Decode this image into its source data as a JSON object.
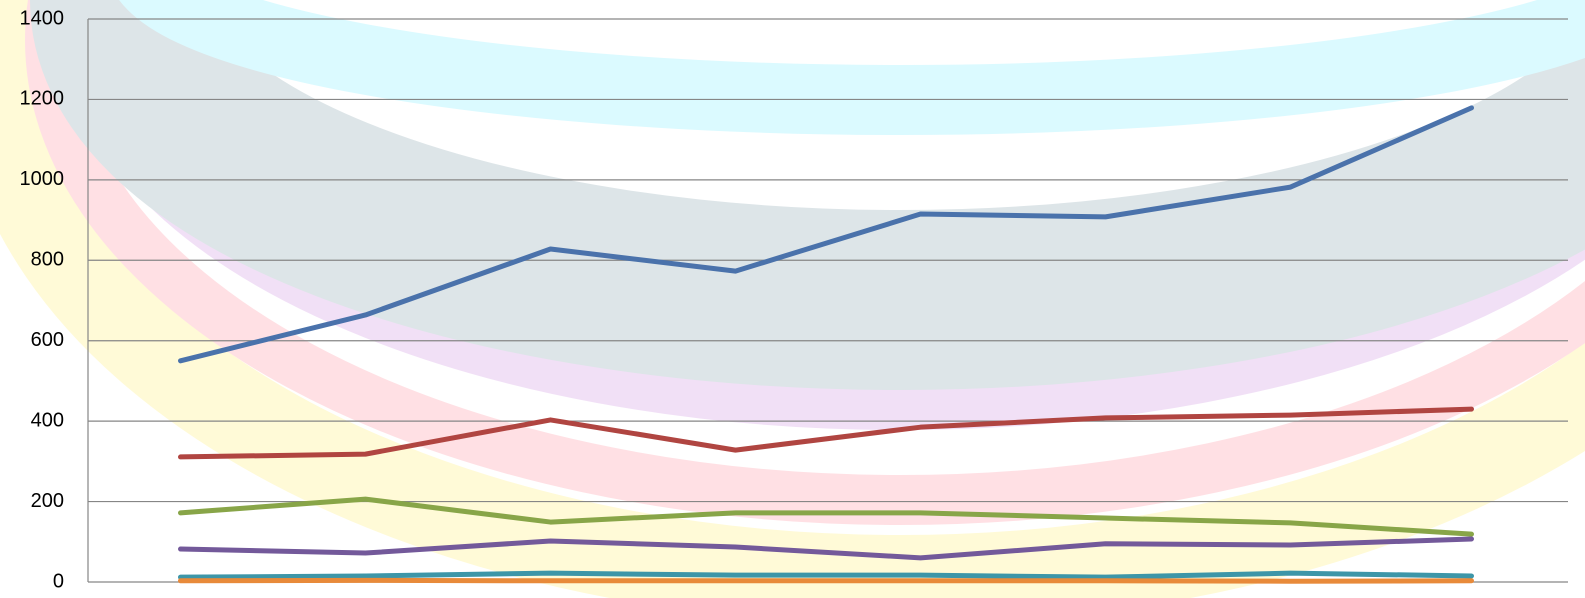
{
  "chart_data": {
    "type": "line",
    "categories": [
      null,
      null,
      null,
      null,
      null,
      null,
      null,
      null
    ],
    "series": [
      {
        "color": "#4a72ab",
        "values": [
          550,
          664,
          828,
          773,
          915,
          908,
          982,
          1179
        ]
      },
      {
        "color": "#b04541",
        "values": [
          311,
          318,
          403,
          328,
          385,
          408,
          415,
          430
        ]
      },
      {
        "color": "#88a548",
        "values": [
          172,
          206,
          149,
          172,
          172,
          159,
          147,
          119
        ]
      },
      {
        "color": "#73599a",
        "values": [
          82,
          72,
          102,
          87,
          60,
          95,
          92,
          107
        ]
      },
      {
        "color": "#3d96a8",
        "values": [
          12,
          15,
          22,
          17,
          17,
          12,
          22,
          15
        ]
      },
      {
        "color": "#e88a3a",
        "values": [
          3,
          4,
          3,
          3,
          3,
          3,
          2,
          3
        ]
      }
    ],
    "ylim": [
      0,
      1400
    ],
    "yticks": [
      0,
      200,
      400,
      600,
      800,
      1000,
      1200,
      1400
    ],
    "grid": true
  }
}
